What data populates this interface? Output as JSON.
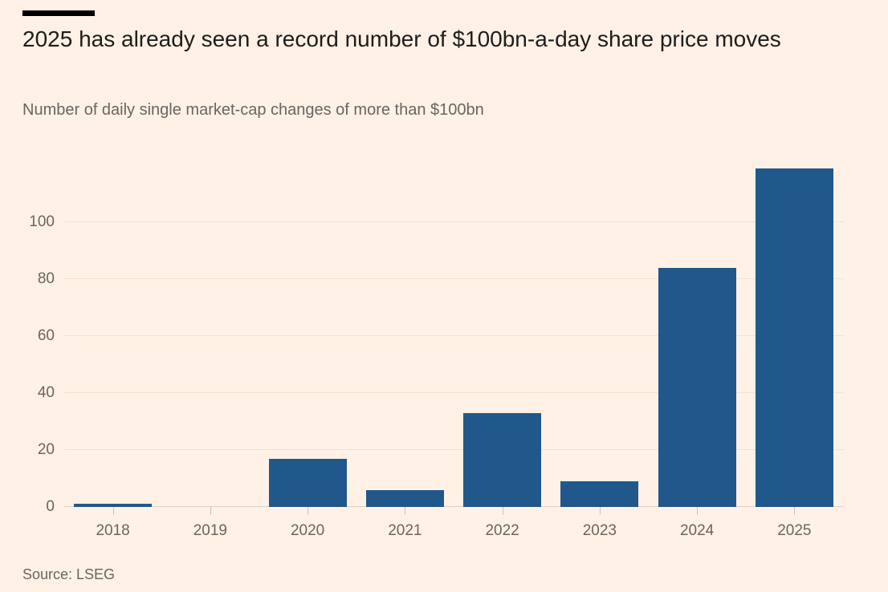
{
  "header": {
    "title": "2025 has already seen a record number of $100bn-a-day share price moves",
    "subtitle": "Number of daily single market-cap changes of more than $100bn"
  },
  "footer": {
    "source": "Source: LSEG"
  },
  "colors": {
    "background": "#fff1e5",
    "bar": "#20588c",
    "title_text": "#1f1d1b",
    "muted_text": "#6b6560",
    "gridline": "#f0e1d3",
    "baseline": "#ddd0c4",
    "tick": "#cdc3b9",
    "top_rule": "#000000"
  },
  "chart_data": {
    "type": "bar",
    "categories": [
      "2018",
      "2019",
      "2020",
      "2021",
      "2022",
      "2023",
      "2024",
      "2025"
    ],
    "values": [
      1,
      0,
      17,
      6,
      33,
      9,
      84,
      119
    ],
    "title": "2025 has already seen a record number of $100bn-a-day share price moves",
    "subtitle": "Number of daily single market-cap changes of more than $100bn",
    "source": "Source: LSEG",
    "xlabel": "",
    "ylabel": "",
    "ylim": [
      0,
      120
    ],
    "yticks": [
      0,
      20,
      40,
      60,
      80,
      100
    ],
    "grid": "horizontal",
    "legend": "none",
    "bar_color": "#20588c"
  }
}
